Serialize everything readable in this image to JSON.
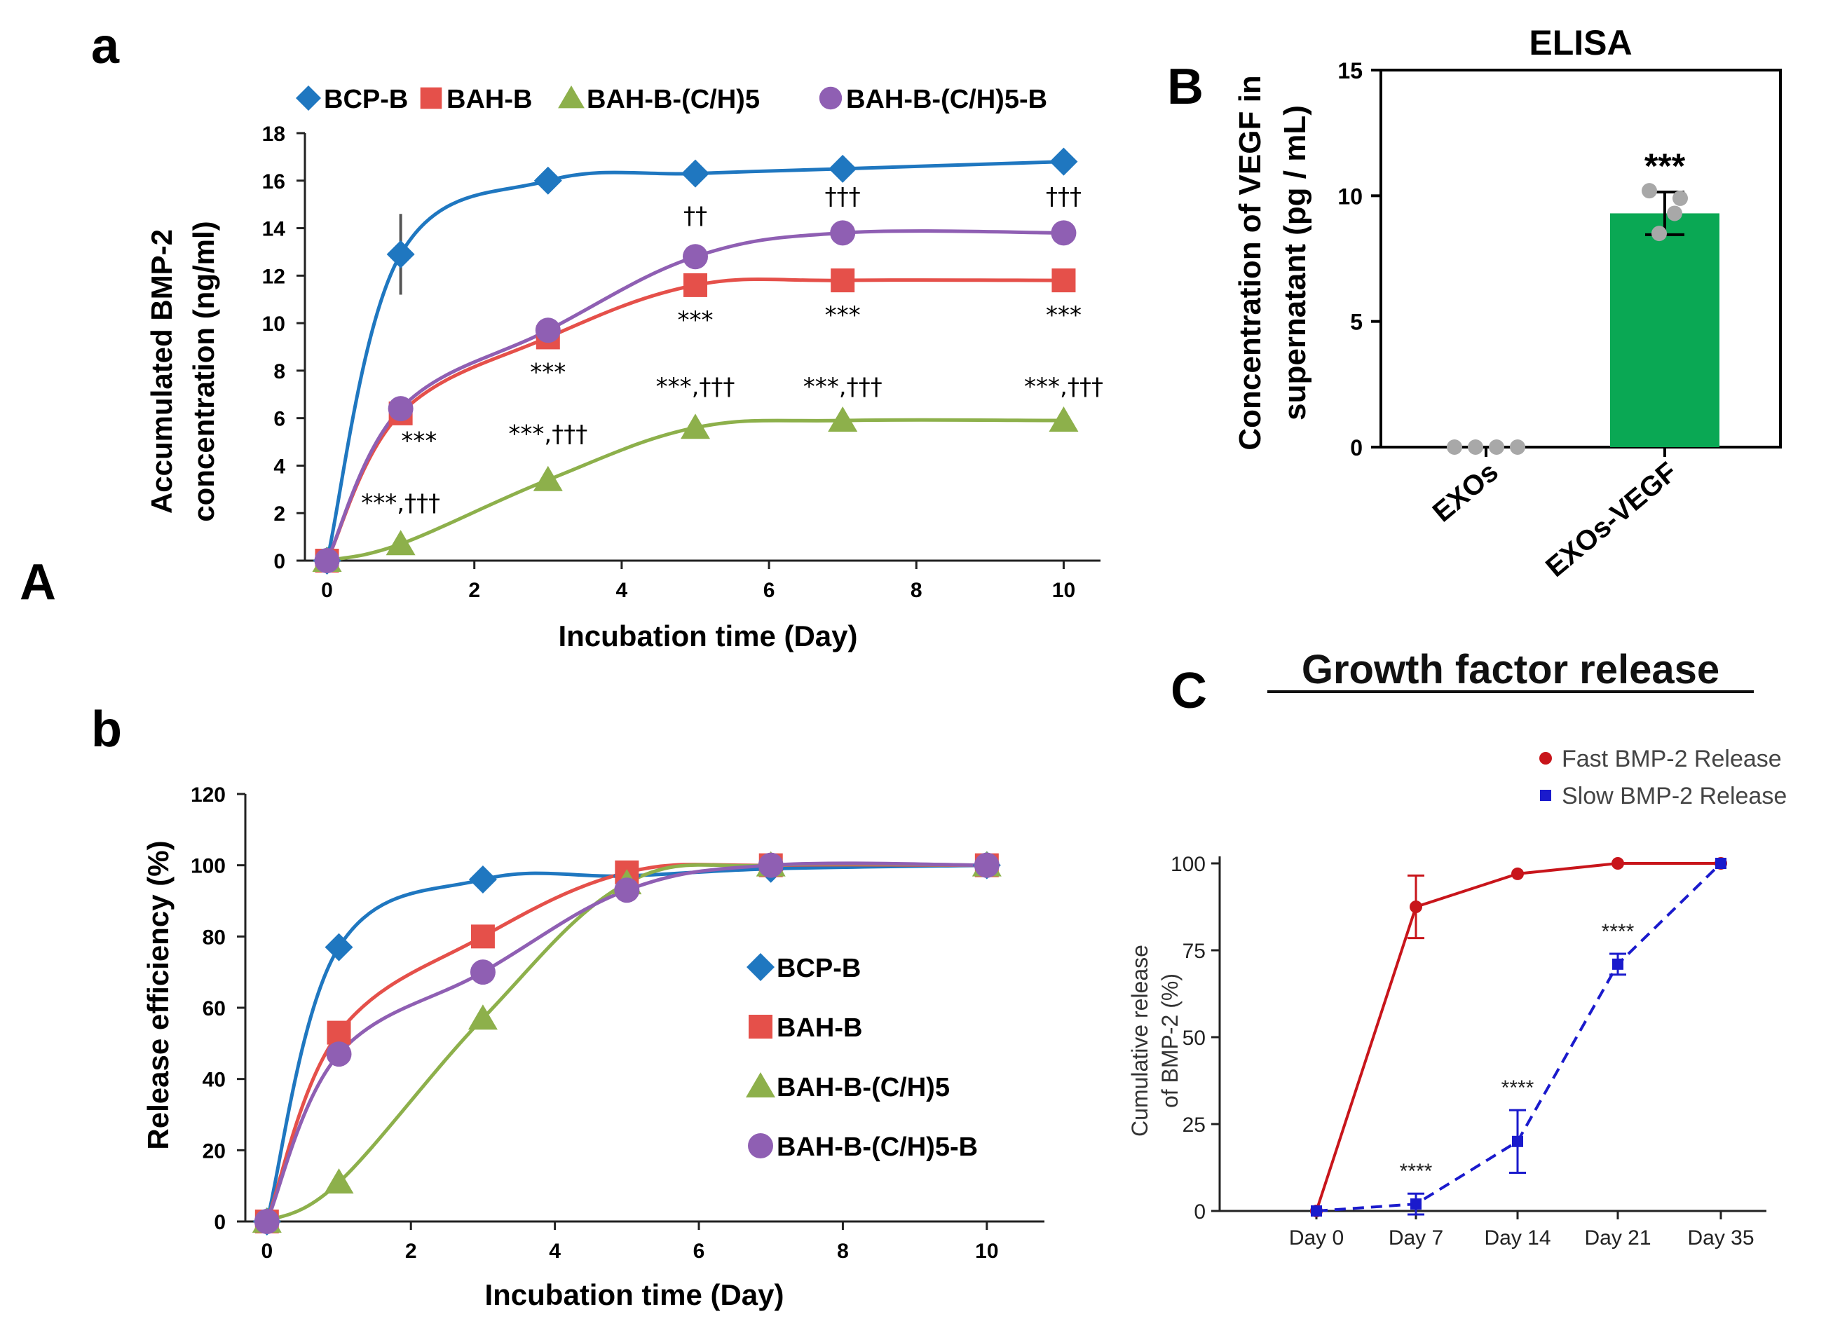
{
  "panel_labels": {
    "big_a": "A",
    "small_a": "a",
    "small_b": "b",
    "big_b": "B",
    "big_c": "C"
  },
  "colors": {
    "blue": "#1f77c0",
    "red": "#e5504a",
    "green": "#8db04b",
    "purple": "#8f5fb3",
    "bar_green": "#0aa854",
    "c_red": "#c8151b",
    "c_blue": "#1a1acc"
  },
  "chart_data": [
    {
      "id": "a",
      "type": "line",
      "xlabel": "Incubation time (Day)",
      "ylabel_line1": "Accumulated BMP-2",
      "ylabel_line2": "concentration (ng/ml)",
      "xlim": [
        -0.3,
        10.5
      ],
      "ylim": [
        0,
        18
      ],
      "xticks": [
        0,
        2,
        4,
        6,
        8,
        10
      ],
      "yticks": [
        0,
        2,
        4,
        6,
        8,
        10,
        12,
        14,
        16,
        18
      ],
      "x": [
        0,
        1,
        3,
        5,
        7,
        10
      ],
      "series": [
        {
          "name": "BCP-B",
          "marker": "diamond",
          "color": "#1f77c0",
          "values": [
            0,
            12.9,
            16.0,
            16.3,
            16.5,
            16.8
          ],
          "errors": [
            0,
            1.7,
            0,
            0,
            0,
            0
          ]
        },
        {
          "name": "BAH-B",
          "marker": "square",
          "color": "#e5504a",
          "values": [
            0,
            6.2,
            9.4,
            11.6,
            11.8,
            11.8
          ]
        },
        {
          "name": "BAH-B-(C/H)5",
          "marker": "triangle",
          "color": "#8db04b",
          "values": [
            0,
            0.7,
            3.4,
            5.6,
            5.9,
            5.9
          ]
        },
        {
          "name": "BAH-B-(C/H)5-B",
          "marker": "circle",
          "color": "#8f5fb3",
          "values": [
            0,
            6.4,
            9.7,
            12.8,
            13.8,
            13.8
          ]
        }
      ],
      "annotations": [
        {
          "text": "***,†††",
          "x": 1.0,
          "y": 2.1
        },
        {
          "text": "***",
          "x": 1.25,
          "y": 4.7
        },
        {
          "text": "***,†††",
          "x": 3.0,
          "y": 5.0
        },
        {
          "text": "***",
          "x": 3.0,
          "y": 7.6
        },
        {
          "text": "***,†††",
          "x": 5.0,
          "y": 7.0
        },
        {
          "text": "***",
          "x": 5.0,
          "y": 9.8
        },
        {
          "text": "††",
          "x": 5.0,
          "y": 14.2
        },
        {
          "text": "***,†††",
          "x": 7.0,
          "y": 7.0
        },
        {
          "text": "***",
          "x": 7.0,
          "y": 10.0
        },
        {
          "text": "†††",
          "x": 7.0,
          "y": 15.0
        },
        {
          "text": "***,†††",
          "x": 10.0,
          "y": 7.0
        },
        {
          "text": "***",
          "x": 10.0,
          "y": 10.0
        },
        {
          "text": "†††",
          "x": 10.0,
          "y": 15.0
        }
      ]
    },
    {
      "id": "b",
      "type": "line",
      "xlabel": "Incubation time (Day)",
      "ylabel": "Release efficiency (%)",
      "xlim": [
        -0.3,
        10.8
      ],
      "ylim": [
        0,
        120
      ],
      "xticks": [
        0,
        2,
        4,
        6,
        8,
        10
      ],
      "yticks": [
        0,
        20,
        40,
        60,
        80,
        100,
        120
      ],
      "x": [
        0,
        1,
        3,
        5,
        7,
        10
      ],
      "series": [
        {
          "name": "BCP-B",
          "marker": "diamond",
          "color": "#1f77c0",
          "values": [
            0,
            77,
            96,
            97,
            99,
            100
          ]
        },
        {
          "name": "BAH-B",
          "marker": "square",
          "color": "#e5504a",
          "values": [
            0,
            53,
            80,
            98,
            100,
            100
          ]
        },
        {
          "name": "BAH-B-(C/H)5",
          "marker": "triangle",
          "color": "#8db04b",
          "values": [
            0,
            11,
            57,
            95,
            100,
            100
          ]
        },
        {
          "name": "BAH-B-(C/H)5-B",
          "marker": "circle",
          "color": "#8f5fb3",
          "values": [
            0,
            47,
            70,
            93,
            100,
            100
          ]
        }
      ]
    },
    {
      "id": "B",
      "type": "bar",
      "title": "ELISA",
      "ylabel_line1": "Concentration of  VEGF in",
      "ylabel_line2": "supernatant (pg / mL)",
      "ylim": [
        0,
        15
      ],
      "yticks": [
        0,
        5,
        10,
        15
      ],
      "categories": [
        "EXOs",
        "EXOs-VEGF"
      ],
      "values": [
        0,
        9.3
      ],
      "errors": [
        0,
        0.85
      ],
      "points": [
        [
          0,
          0,
          0,
          0
        ],
        [
          10.2,
          9.9,
          8.5,
          9.3
        ]
      ],
      "significance": "***"
    },
    {
      "id": "C",
      "type": "line",
      "title": "Growth factor release",
      "ylabel_line1": "Cumulative release",
      "ylabel_line2": "of BMP-2 (%)",
      "ylim": [
        0,
        100
      ],
      "yticks": [
        0,
        25,
        50,
        75,
        100
      ],
      "categories": [
        "Day 0",
        "Day 7",
        "Day 14",
        "Day 21",
        "Day 35"
      ],
      "series": [
        {
          "name": "Fast BMP-2 Release",
          "color": "#c8151b",
          "style": "solid",
          "values": [
            0,
            87.5,
            97,
            100,
            100
          ],
          "errors": [
            0,
            9,
            0,
            0,
            0
          ]
        },
        {
          "name": "Slow BMP-2 Release",
          "color": "#1a1acc",
          "style": "dashed",
          "values": [
            0,
            2,
            20,
            71,
            100
          ],
          "errors": [
            0,
            3,
            9,
            3,
            0
          ]
        }
      ],
      "significance": [
        {
          "category": "Day 7",
          "text": "****"
        },
        {
          "category": "Day 14",
          "text": "****"
        },
        {
          "category": "Day 21",
          "text": "****"
        }
      ]
    }
  ]
}
